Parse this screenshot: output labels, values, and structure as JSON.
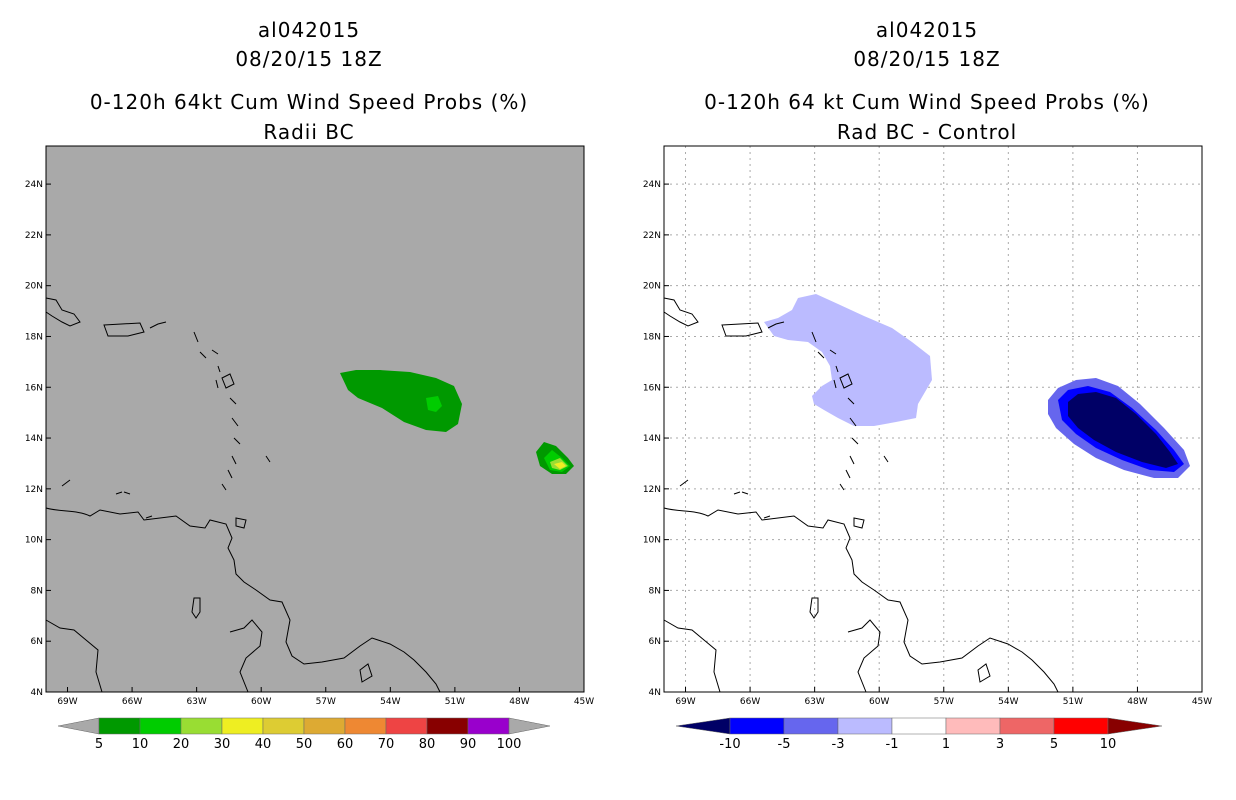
{
  "left_panel": {
    "storm_id": "al042015",
    "datetime": "08/20/15 18Z",
    "product": "0-120h 64kt Cum Wind Speed Probs (%)",
    "subtitle": "Radii BC",
    "background_color": "#a9a9a9",
    "colorbar": {
      "labels": [
        "5",
        "10",
        "20",
        "30",
        "40",
        "50",
        "60",
        "70",
        "80",
        "90",
        "100"
      ],
      "colors": [
        "#009900",
        "#00cc00",
        "#99dd33",
        "#eeee22",
        "#ddcc33",
        "#ddaa33",
        "#ee8833",
        "#ee4444",
        "#880000",
        "#9900cc"
      ]
    }
  },
  "right_panel": {
    "storm_id": "al042015",
    "datetime": "08/20/15 18Z",
    "product": "0-120h 64 kt Cum Wind Speed Probs (%)",
    "subtitle": "Rad BC - Control",
    "background_color": "#ffffff",
    "colorbar": {
      "labels": [
        "-10",
        "-5",
        "-3",
        "-1",
        "1",
        "3",
        "5",
        "10"
      ],
      "colors": [
        "#000066",
        "#0000ff",
        "#6666ee",
        "#bbbbff",
        "#ffffff",
        "#ffbbbb",
        "#ee6666",
        "#ff0000",
        "#880000"
      ]
    }
  },
  "axes": {
    "lat_labels": [
      "24N",
      "22N",
      "20N",
      "18N",
      "16N",
      "14N",
      "12N",
      "10N",
      "8N",
      "6N",
      "4N"
    ],
    "lon_labels": [
      "69W",
      "66W",
      "63W",
      "60W",
      "57W",
      "54W",
      "51W",
      "48W",
      "45W"
    ]
  },
  "chart_data": [
    {
      "type": "heatmap",
      "title": "0-120h 64kt Cum Wind Speed Probs (%)",
      "subtitle": "Radii BC",
      "lat_range": [
        4,
        25.5
      ],
      "lon_range": [
        -70,
        -45
      ],
      "levels": [
        5,
        10,
        20,
        30,
        40,
        50,
        60,
        70,
        80,
        90,
        100
      ],
      "features": [
        {
          "level_min": 5,
          "lon": -52,
          "lat": 15.4
        },
        {
          "level_min": 10,
          "lon": -51.3,
          "lat": 15.3
        },
        {
          "level_min": 5,
          "lon": -45.6,
          "lat": 13.2
        },
        {
          "level_min": 10,
          "lon": -45.5,
          "lat": 13.1
        },
        {
          "level_min": 20,
          "lon": -45.4,
          "lat": 13.0
        },
        {
          "level_min": 30,
          "lon": -45.3,
          "lat": 13.0
        }
      ]
    },
    {
      "type": "heatmap",
      "title": "0-120h 64 kt Cum Wind Speed Probs (%)",
      "subtitle": "Rad BC - Control",
      "lat_range": [
        4,
        25.5
      ],
      "lon_range": [
        -70,
        -45
      ],
      "levels": [
        -10,
        -5,
        -3,
        -1,
        1,
        3,
        5,
        10
      ],
      "features": [
        {
          "level_max": -1,
          "lon": -61,
          "lat": 17
        },
        {
          "level_max": -3,
          "lon": -48,
          "lat": 14.2
        },
        {
          "level_max": -5,
          "lon": -48,
          "lat": 14.2
        },
        {
          "level_max": -10,
          "lon": -48,
          "lat": 14.2
        }
      ]
    }
  ]
}
